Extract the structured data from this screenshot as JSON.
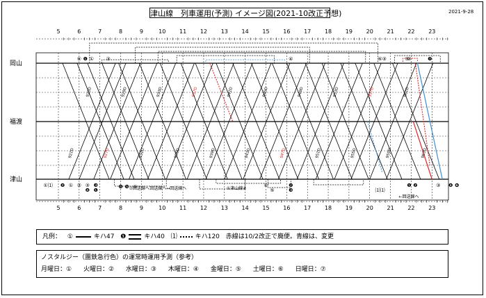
{
  "title": "津山線　列車運用(予測) イメージ図(2021-10改正予想)",
  "date": "2021-9-28",
  "stations": [
    {
      "name": "岡山"
    },
    {
      "name": "福渡"
    },
    {
      "name": "津山"
    }
  ],
  "hours": [
    "5",
    "6",
    "7",
    "8",
    "9",
    "10",
    "11",
    "12",
    "13",
    "14",
    "15",
    "16",
    "17",
    "18",
    "19",
    "20",
    "21",
    "22",
    "23"
  ],
  "marks_top": [
    "⑥",
    "❶",
    "①",
    "③",
    "④",
    "⑥",
    "②",
    "③",
    "⑤",
    "❼"
  ],
  "marks_bottom": [
    "①⑴",
    "❷",
    "①",
    "②",
    "③",
    "❸",
    "❹",
    "❶",
    "❻",
    "❺",
    "⑤",
    "④",
    "⑤",
    "❷",
    "❸",
    "⑴⑴",
    "❶",
    "❷",
    "③",
    "❹",
    "❻"
  ],
  "notes": [
    "⑦回送線へ",
    "←回送線へ",
    "回送線へ→",
    "①津山線④",
    "←回送線へ"
  ],
  "train_numbers": [
    "921D",
    "925D",
    "927D",
    "929D",
    "931D",
    "933D",
    "935D",
    "937D",
    "939D",
    "941D",
    "943D",
    "945D",
    "947D",
    "949D",
    "951D",
    "953D",
    "955D",
    "957D",
    "959D",
    "961D",
    "963D"
  ],
  "legend": {
    "label": "凡例：",
    "type1_mark": "①",
    "type1_name": "キハ47",
    "type2_mark": "❶",
    "type2_name": "キハ40",
    "type3_mark": "⑴",
    "type3_name": "キハ120",
    "note": "赤線は10/2改正で廃便。青線は、変更"
  },
  "nostalgie": {
    "heading": "ノスタルジー（團鉄急行色）の運常時運用予測（参考）",
    "days": [
      {
        "label": "月曜日：①"
      },
      {
        "label": "火曜日：②"
      },
      {
        "label": "水曜日：③"
      },
      {
        "label": "木曜日：④"
      },
      {
        "label": "金曜日：⑤"
      },
      {
        "label": "土曜日：⑥"
      },
      {
        "label": "日曜日：⑦"
      }
    ]
  },
  "colors": {
    "red": "#e02020",
    "blue": "#3a8fd8",
    "line": "#000000"
  }
}
